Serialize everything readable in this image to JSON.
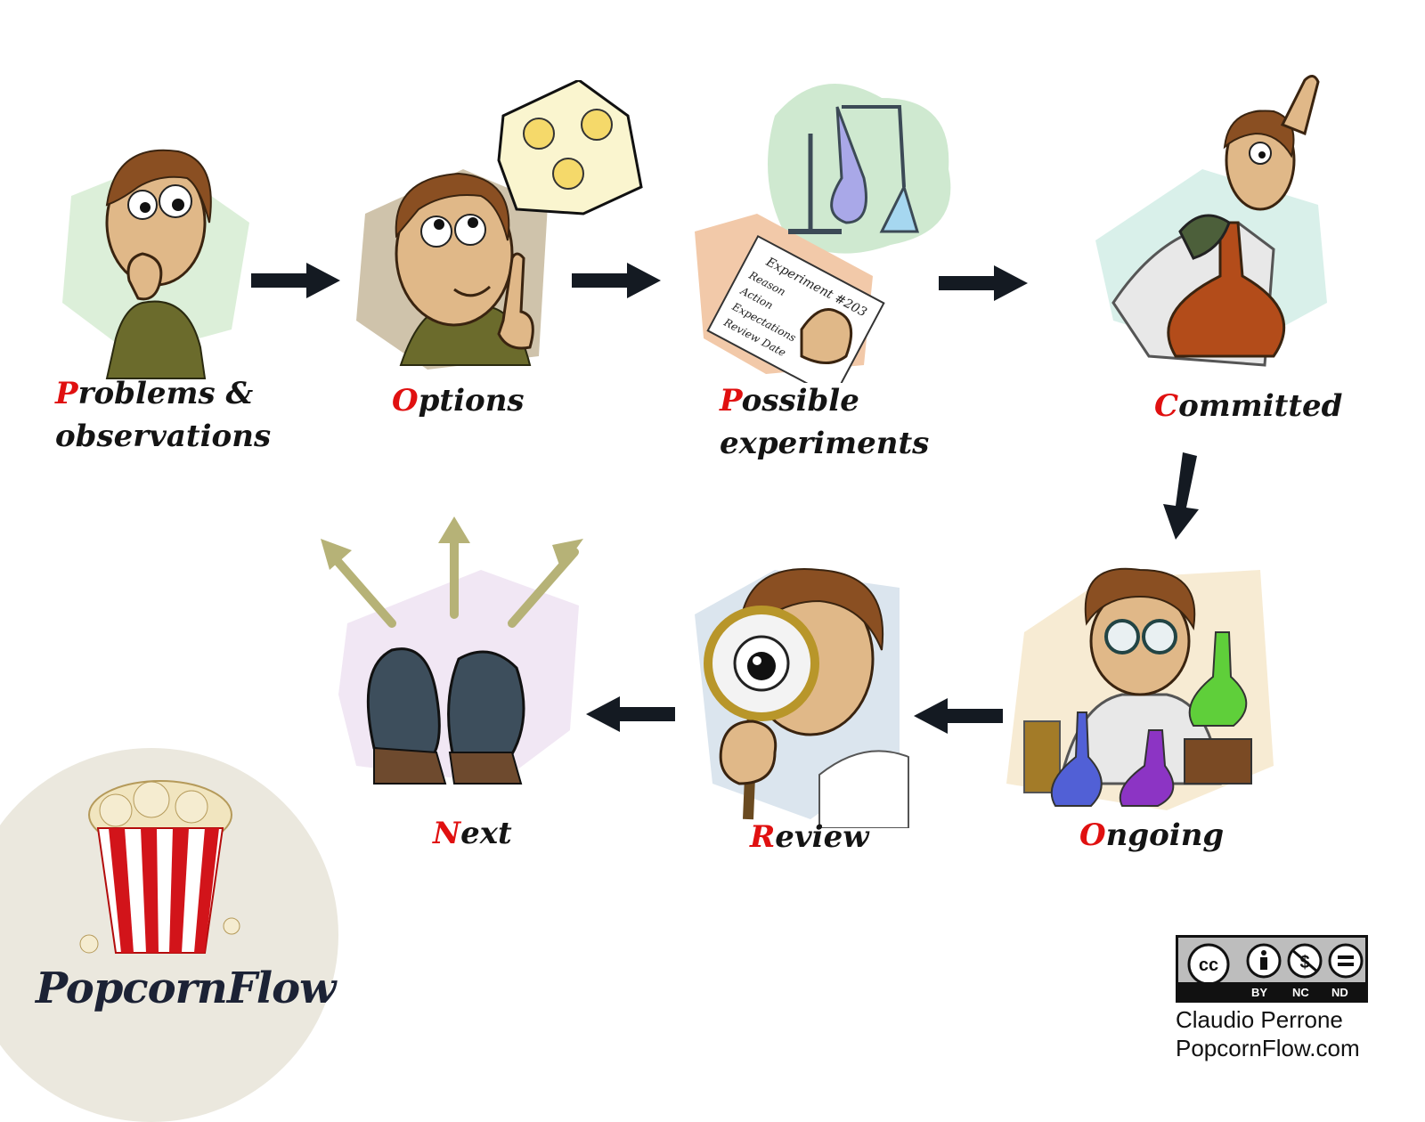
{
  "steps": [
    {
      "first": "P",
      "rest": "roblems &",
      "line2": "observations"
    },
    {
      "first": "O",
      "rest": "ptions",
      "line2": ""
    },
    {
      "first": "P",
      "rest": "ossible",
      "line2": "experiments"
    },
    {
      "first": "C",
      "rest": "ommitted",
      "line2": ""
    },
    {
      "first": "O",
      "rest": "ngoing",
      "line2": ""
    },
    {
      "first": "R",
      "rest": "eview",
      "line2": ""
    },
    {
      "first": "N",
      "rest": "ext",
      "line2": ""
    }
  ],
  "illustrations": [
    {
      "icon": "thinking-man-icon"
    },
    {
      "icon": "lightbulb-idea-icon"
    },
    {
      "icon": "experiment-flask-paper-icon"
    },
    {
      "icon": "scientist-flask-icon"
    },
    {
      "icon": "mad-scientist-lab-icon"
    },
    {
      "icon": "magnifying-glass-icon"
    },
    {
      "icon": "feet-options-icon"
    }
  ],
  "experiment_paper": {
    "title": "Experiment #203",
    "lines": [
      "Reason",
      "Action",
      "Expectations",
      "Review Date"
    ]
  },
  "logo": {
    "text": "PopcornFlow"
  },
  "license": {
    "cc": "cc",
    "terms": [
      "BY",
      "NC",
      "ND"
    ]
  },
  "credit": {
    "author": "Claudio Perrone",
    "site": "PopcornFlow.com"
  },
  "colors": {
    "accent": "#e01010",
    "text": "#141414",
    "arrow": "#141a22",
    "next_arrows": "#b6b277"
  }
}
